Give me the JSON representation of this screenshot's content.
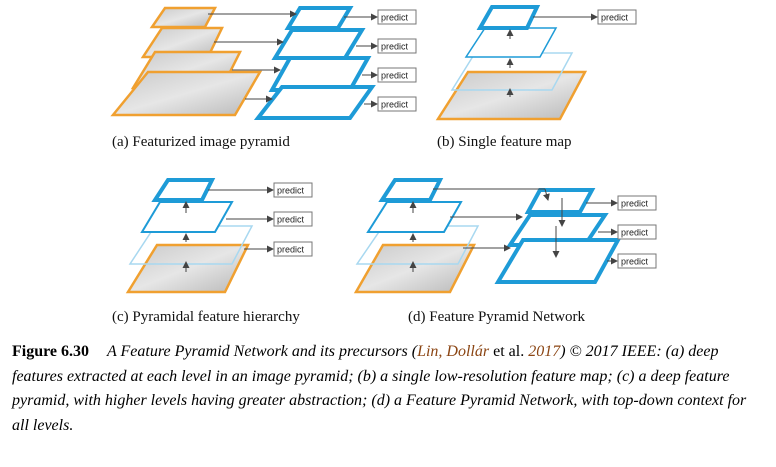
{
  "panels": [
    {
      "id": "a",
      "caption": "(a) Featurized image pyramid"
    },
    {
      "id": "b",
      "caption": "(b) Single feature map"
    },
    {
      "id": "c",
      "caption": "(c) Pyramidal feature hierarchy"
    },
    {
      "id": "d",
      "caption": "(d) Feature Pyramid Network"
    }
  ],
  "predict_label": "predict",
  "caption": {
    "figure_number": "Figure 6.30",
    "text_1": "A Feature Pyramid Network and its precursors (",
    "cite_authors": "Lin, Dollár",
    "text_et_al": " et al. ",
    "cite_year": "2017",
    "text_2": ") © 2017 IEEE: (a) deep features extracted at each level in an image pyramid; (b) a single low-resolution feature map; (c) a deep feature pyramid, with higher levels having greater abstraction; (d) a Feature Pyramid Network, with top-down context for all levels."
  },
  "colors": {
    "feature_blue": "#1e9bd7",
    "image_orange": "#f0a030",
    "arrow": "#444444",
    "citation": "#8b4513"
  }
}
